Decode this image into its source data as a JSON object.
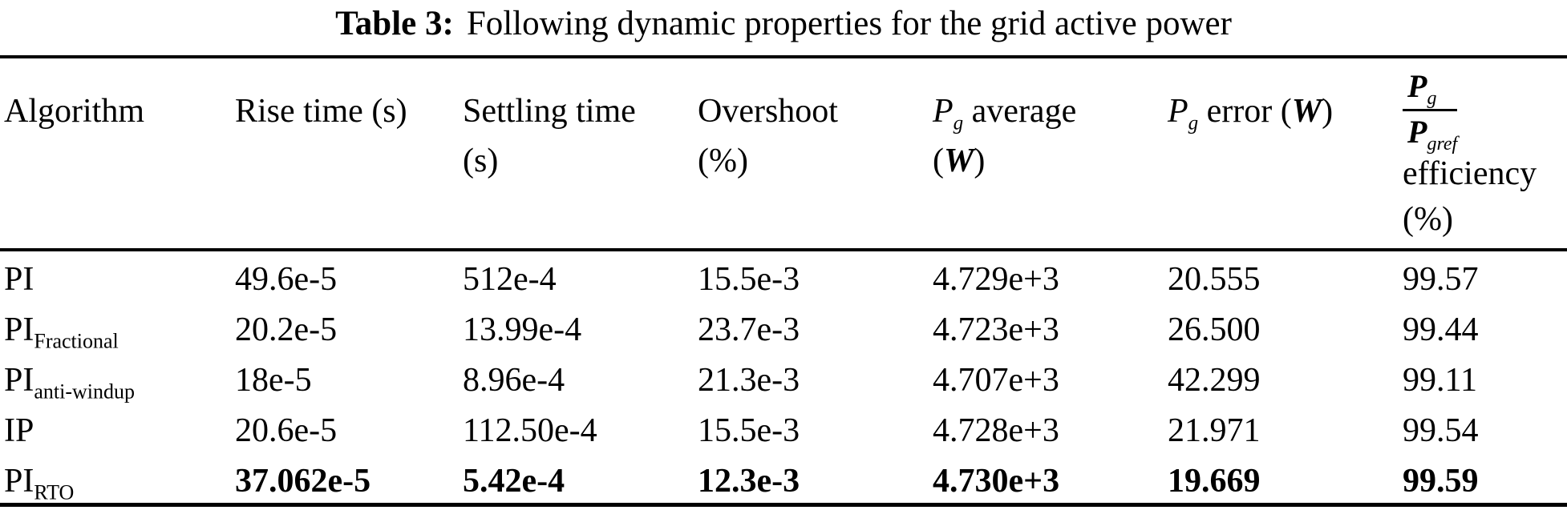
{
  "title": {
    "prefix": "Table 3:",
    "text": "Following dynamic properties for the grid active power"
  },
  "header": {
    "algorithm": "Algorithm",
    "rise_time": "Rise time (s)",
    "settling_time_line1": "Settling time",
    "settling_time_line2": "(s)",
    "overshoot_line1": "Overshoot",
    "overshoot_line2": "(%)",
    "pg_average": {
      "p": "P",
      "sub": "g",
      "rest": " average",
      "open": "(",
      "w": "W",
      "close": ")"
    },
    "pg_error": {
      "p": "P",
      "sub": "g",
      "rest": " error ",
      "open": "(",
      "w": "W",
      "close": ")"
    },
    "efficiency": {
      "num_p": "P",
      "num_sub": "g",
      "den_p": "P",
      "den_sub": "gref",
      "line2": "efficiency",
      "line3": "(%)"
    }
  },
  "rows": [
    {
      "label": {
        "base": "PI",
        "sub": ""
      },
      "bold": false,
      "values": [
        "49.6e-5",
        "512e-4",
        "15.5e-3",
        "4.729e+3",
        "20.555",
        "99.57"
      ]
    },
    {
      "label": {
        "base": "PI",
        "sub": "Fractional"
      },
      "bold": false,
      "values": [
        "20.2e-5",
        "13.99e-4",
        "23.7e-3",
        "4.723e+3",
        "26.500",
        "99.44"
      ]
    },
    {
      "label": {
        "base": "PI",
        "sub": "anti-windup"
      },
      "bold": false,
      "values": [
        "18e-5",
        "8.96e-4",
        "21.3e-3",
        "4.707e+3",
        "42.299",
        "99.11"
      ]
    },
    {
      "label": {
        "base": "IP",
        "sub": ""
      },
      "bold": false,
      "values": [
        "20.6e-5",
        "112.50e-4",
        "15.5e-3",
        "4.728e+3",
        "21.971",
        "99.54"
      ]
    },
    {
      "label": {
        "base": "PI",
        "sub": "RTO"
      },
      "bold": true,
      "values": [
        "37.062e-5",
        "5.42e-4",
        "12.3e-3",
        "4.730e+3",
        "19.669",
        "99.59"
      ]
    }
  ],
  "colors": {
    "text": "#000000",
    "background": "#ffffff",
    "rule": "#000000"
  }
}
